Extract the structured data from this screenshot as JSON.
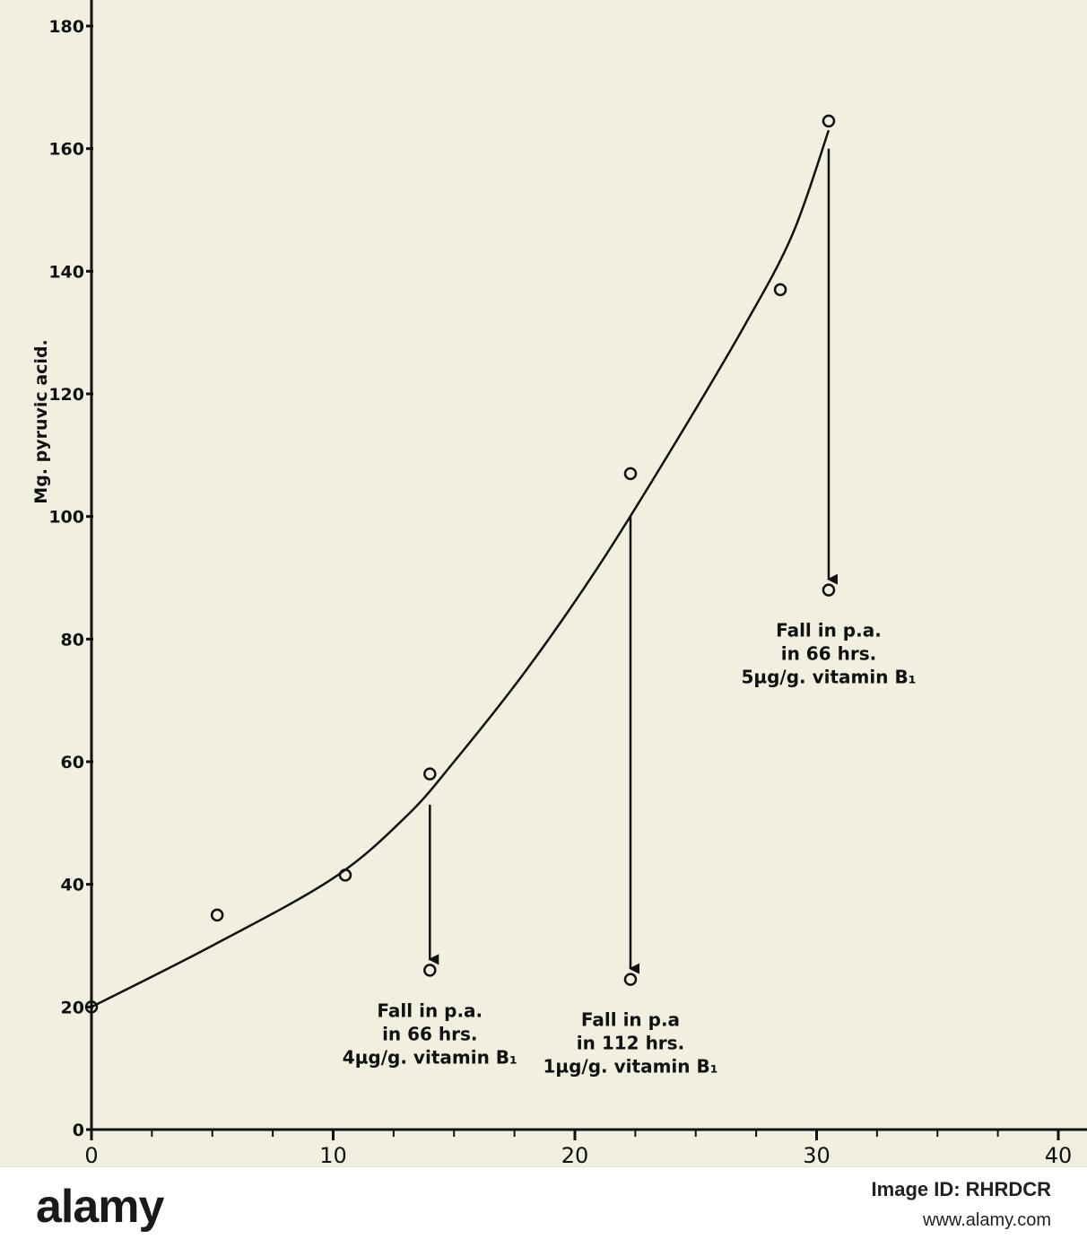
{
  "chart_data": {
    "type": "scatter",
    "title": "",
    "xlabel": "",
    "ylabel": "Mg. pyruvic acid.",
    "xlim": [
      0,
      40
    ],
    "ylim": [
      0,
      180
    ],
    "x_ticks": [
      "0",
      "10",
      "20",
      "30",
      "40"
    ],
    "y_ticks": [
      "0",
      "20",
      "40",
      "60",
      "80",
      "100",
      "120",
      "140",
      "160",
      "180"
    ],
    "grid": false,
    "series": [
      {
        "kind": "points",
        "points": [
          {
            "x": 0,
            "y": 20
          },
          {
            "x": 5.2,
            "y": 35
          },
          {
            "x": 10.5,
            "y": 41.5
          },
          {
            "x": 14,
            "y": 58
          },
          {
            "x": 22.3,
            "y": 107
          },
          {
            "x": 28.5,
            "y": 137
          },
          {
            "x": 30.5,
            "y": 164.5
          }
        ]
      },
      {
        "kind": "fitted-curve",
        "points": [
          {
            "x": 0,
            "y": 20
          },
          {
            "x": 5,
            "y": 30
          },
          {
            "x": 10,
            "y": 41
          },
          {
            "x": 13,
            "y": 51
          },
          {
            "x": 15,
            "y": 60
          },
          {
            "x": 18,
            "y": 75
          },
          {
            "x": 21,
            "y": 92
          },
          {
            "x": 24,
            "y": 111
          },
          {
            "x": 27,
            "y": 131
          },
          {
            "x": 29,
            "y": 146
          },
          {
            "x": 30.5,
            "y": 163
          }
        ]
      }
    ],
    "annotations": [
      {
        "from": {
          "x": 14,
          "y": 53
        },
        "to": {
          "x": 14,
          "y": 26
        },
        "lines": [
          "Fall in p.a.",
          "in 66 hrs.",
          "4µg/g. vitamin B₁"
        ]
      },
      {
        "from": {
          "x": 22.3,
          "y": 100
        },
        "to": {
          "x": 22.3,
          "y": 24.5
        },
        "lines": [
          "Fall in p.a",
          "in 112 hrs.",
          "1µg/g. vitamin B₁"
        ]
      },
      {
        "from": {
          "x": 30.5,
          "y": 160
        },
        "to": {
          "x": 30.5,
          "y": 88
        },
        "lines": [
          "Fall in p.a.",
          "in 66 hrs.",
          "5µg/g. vitamin B₁"
        ]
      }
    ]
  },
  "watermark": {
    "brand": "alamy",
    "image_id": "Image ID: RHRDCR",
    "url": "www.alamy.com"
  }
}
